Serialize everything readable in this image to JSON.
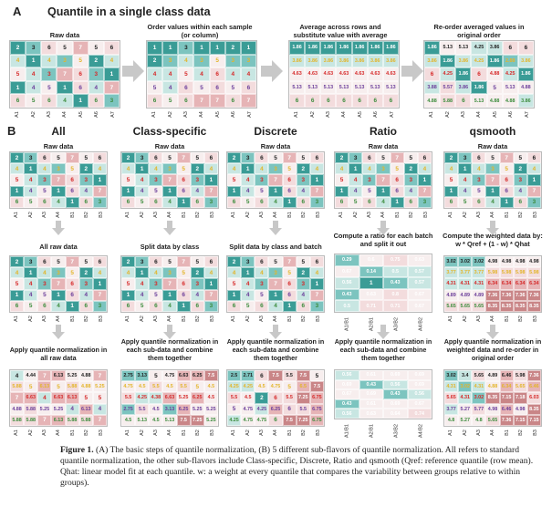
{
  "panel_a": {
    "letter": "A",
    "title": "Quantile in a single class data",
    "steps": [
      {
        "label": "Raw data"
      },
      {
        "label": "Order values within each sample (or column)"
      },
      {
        "label": "Average across rows and substitute value with average"
      },
      {
        "label": "Re-order averaged values in original order"
      }
    ],
    "col_labels": [
      "A1",
      "A2",
      "A3",
      "A4",
      "A5",
      "A6",
      "A7"
    ],
    "grids": [
      {
        "values": [
          [
            "2",
            "3",
            "6",
            "5",
            "7",
            "5",
            "6"
          ],
          [
            "4",
            "1",
            "4",
            "3",
            "5",
            "2",
            "4"
          ],
          [
            "5",
            "4",
            "3",
            "7",
            "6",
            "3",
            "1"
          ],
          [
            "1",
            "4",
            "5",
            "1",
            "6",
            "4",
            "7"
          ],
          [
            "6",
            "5",
            "6",
            "4",
            "1",
            "6",
            "3"
          ]
        ]
      },
      {
        "values": [
          [
            "1",
            "1",
            "3",
            "1",
            "1",
            "2",
            "1"
          ],
          [
            "2",
            "3",
            "4",
            "3",
            "5",
            "3",
            "3"
          ],
          [
            "4",
            "4",
            "5",
            "4",
            "6",
            "4",
            "4"
          ],
          [
            "5",
            "4",
            "6",
            "5",
            "6",
            "5",
            "6"
          ],
          [
            "6",
            "5",
            "6",
            "7",
            "7",
            "6",
            "7"
          ]
        ]
      },
      {
        "values": [
          [
            "1.86",
            "1.86",
            "1.86",
            "1.86",
            "1.86",
            "1.86",
            "1.86"
          ],
          [
            "3.86",
            "3.86",
            "3.86",
            "3.86",
            "3.86",
            "3.86",
            "3.86"
          ],
          [
            "4.63",
            "4.63",
            "4.63",
            "4.63",
            "4.63",
            "4.63",
            "4.63"
          ],
          [
            "5.13",
            "5.13",
            "5.13",
            "5.13",
            "5.13",
            "5.13",
            "5.13"
          ],
          [
            "6",
            "6",
            "6",
            "6",
            "6",
            "6",
            "6"
          ]
        ]
      },
      {
        "values": [
          [
            "1.86",
            "5.13",
            "5.13",
            "4.25",
            "3.86",
            "6",
            "6"
          ],
          [
            "3.86",
            "1.86",
            "3.86",
            "4.25",
            "1.86",
            "2.88",
            "3.86"
          ],
          [
            "6",
            "4.25",
            "1.86",
            "6",
            "4.88",
            "4.25",
            "1.86"
          ],
          [
            "3.88",
            "5.57",
            "3.86",
            "1.86",
            "5",
            "5.13",
            "4.88"
          ],
          [
            "4.88",
            "5.88",
            "6",
            "5.13",
            "4.88",
            "4.88",
            "3.86"
          ]
        ]
      }
    ]
  },
  "panel_b": {
    "letter": "B",
    "col_labels": [
      "A1",
      "A2",
      "A3",
      "A4",
      "B1",
      "B2",
      "B3"
    ],
    "flavors": [
      {
        "name": "All",
        "row1_label": "Raw data",
        "row2_label": "All raw data",
        "row3_label": "Apply quantile normalization in all raw data",
        "g1": [
          [
            "2",
            "3",
            "6",
            "5",
            "7",
            "5",
            "6"
          ],
          [
            "4",
            "1",
            "4",
            "3",
            "5",
            "2",
            "4"
          ],
          [
            "5",
            "4",
            "3",
            "7",
            "6",
            "3",
            "1"
          ],
          [
            "1",
            "4",
            "5",
            "1",
            "6",
            "4",
            "7"
          ],
          [
            "6",
            "5",
            "6",
            "4",
            "1",
            "6",
            "3"
          ]
        ],
        "g2": [
          [
            "2",
            "3",
            "6",
            "5",
            "7",
            "5",
            "6"
          ],
          [
            "4",
            "1",
            "4",
            "3",
            "5",
            "2",
            "4"
          ],
          [
            "5",
            "4",
            "3",
            "7",
            "6",
            "3",
            "1"
          ],
          [
            "1",
            "4",
            "5",
            "1",
            "6",
            "4",
            "7"
          ],
          [
            "6",
            "5",
            "6",
            "4",
            "1",
            "6",
            "3"
          ]
        ],
        "g3": [
          [
            "4",
            "4.44",
            "7",
            "6.13",
            "5.25",
            "4.88",
            "7"
          ],
          [
            "5.88",
            "5",
            "6.13",
            "5",
            "5.88",
            "4.88",
            "5.25"
          ],
          [
            "7",
            "6.63",
            "4",
            "6.63",
            "6.13",
            "5",
            "5"
          ],
          [
            "4.88",
            "5.88",
            "5.25",
            "5.25",
            "4",
            "6.13",
            "4"
          ],
          [
            "5.88",
            "5.88",
            "7",
            "6.13",
            "5.88",
            "5.88",
            "7"
          ]
        ]
      },
      {
        "name": "Class-specific",
        "row1_label": "Raw data",
        "row2_label": "Split data by class",
        "row3_label": "Apply quantile normalization in each sub-data and combine them together",
        "g1": [
          [
            "2",
            "3",
            "6",
            "5",
            "7",
            "5",
            "6"
          ],
          [
            "4",
            "1",
            "4",
            "3",
            "5",
            "2",
            "4"
          ],
          [
            "5",
            "4",
            "3",
            "7",
            "6",
            "3",
            "1"
          ],
          [
            "1",
            "4",
            "5",
            "1",
            "6",
            "4",
            "7"
          ],
          [
            "6",
            "5",
            "6",
            "4",
            "1",
            "6",
            "3"
          ]
        ],
        "g2": [
          [
            "2",
            "3",
            "6",
            "5",
            "7",
            "5",
            "6"
          ],
          [
            "4",
            "1",
            "4",
            "3",
            "5",
            "2",
            "4"
          ],
          [
            "5",
            "4",
            "3",
            "7",
            "6",
            "3",
            "1"
          ],
          [
            "1",
            "4",
            "5",
            "1",
            "6",
            "4",
            "7"
          ],
          [
            "6",
            "5",
            "6",
            "4",
            "1",
            "6",
            "3"
          ]
        ],
        "g3": [
          [
            "2.75",
            "3.13",
            "5",
            "4.75",
            "6.63",
            "6.25",
            "7.5"
          ],
          [
            "4.75",
            "4.5",
            "5.5",
            "4.5",
            "5.5",
            "5",
            "4.5"
          ],
          [
            "5.5",
            "4.25",
            "4.38",
            "6.63",
            "5.25",
            "6.25",
            "4.5"
          ],
          [
            "2.75",
            "5.5",
            "4.5",
            "3.13",
            "6.25",
            "5.25",
            "5.25"
          ],
          [
            "4.5",
            "5.13",
            "4.5",
            "5.13",
            "7.5",
            "7.25",
            "5.25"
          ]
        ]
      },
      {
        "name": "Discrete",
        "row1_label": "Raw data",
        "row2_label": "Split data by class and batch",
        "row3_label": "Apply quantile normalization in each sub-data and combine them together",
        "g1": [
          [
            "2",
            "3",
            "6",
            "5",
            "7",
            "5",
            "6"
          ],
          [
            "4",
            "1",
            "4",
            "3",
            "5",
            "2",
            "4"
          ],
          [
            "5",
            "4",
            "3",
            "7",
            "6",
            "3",
            "1"
          ],
          [
            "1",
            "4",
            "5",
            "1",
            "6",
            "4",
            "7"
          ],
          [
            "6",
            "5",
            "6",
            "4",
            "1",
            "6",
            "3"
          ]
        ],
        "g2": [
          [
            "2",
            "3",
            "6",
            "5",
            "7",
            "5",
            "6"
          ],
          [
            "4",
            "1",
            "4",
            "3",
            "5",
            "2",
            "4"
          ],
          [
            "5",
            "4",
            "3",
            "7",
            "6",
            "3",
            "1"
          ],
          [
            "1",
            "4",
            "5",
            "1",
            "6",
            "4",
            "7"
          ],
          [
            "6",
            "5",
            "6",
            "4",
            "1",
            "6",
            "3"
          ]
        ],
        "g3": [
          [
            "2.5",
            "2.71",
            "6",
            "7.5",
            "5.5",
            "7.5",
            "5"
          ],
          [
            "4.25",
            "4.25",
            "4.5",
            "4.75",
            "5",
            "6.5",
            "7.5"
          ],
          [
            "5.5",
            "4.5",
            "2",
            "6",
            "5.5",
            "7.25",
            "6.75"
          ],
          [
            "5",
            "4.75",
            "4.25",
            "6.25",
            "6",
            "5.5",
            "6.75"
          ],
          [
            "4.25",
            "4.75",
            "4.75",
            "6",
            "7.5",
            "7.25",
            "6.75"
          ]
        ]
      },
      {
        "name": "Ratio",
        "row1_label": "Raw data",
        "row2_label": "Compute a ratio for each batch and split it out",
        "row3_label": "Apply quantile normalization in each sub-data and combine them together",
        "g1": [
          [
            "2",
            "3",
            "6",
            "5",
            "7",
            "5",
            "6"
          ],
          [
            "4",
            "1",
            "4",
            "3",
            "5",
            "2",
            "4"
          ],
          [
            "5",
            "4",
            "3",
            "7",
            "6",
            "3",
            "1"
          ],
          [
            "1",
            "4",
            "5",
            "1",
            "6",
            "4",
            "7"
          ],
          [
            "6",
            "5",
            "6",
            "4",
            "1",
            "6",
            "3"
          ]
        ],
        "g2": [
          [
            "0.29",
            "0.6",
            "0.75",
            "0.63"
          ],
          [
            "0.67",
            "0.14",
            "0.5",
            "0.57"
          ],
          [
            "0.56",
            "1",
            "0.43",
            "0.57"
          ],
          [
            "0.43",
            "0.63",
            "0.8",
            "0.67"
          ],
          [
            "0.5",
            "0.71",
            "0.71",
            "0.67"
          ]
        ],
        "g2_cols": [
          "A1/B1",
          "A2/B1",
          "A3/B2",
          "A4/B2"
        ],
        "g3": [
          [
            "0.56",
            "0.61",
            "0.69",
            "0.69"
          ],
          [
            "0.69",
            "0.43",
            "0.56",
            "0.69"
          ],
          [
            "0.67",
            "0.69",
            "0.43",
            "0.56"
          ],
          [
            "0.43",
            "0.61",
            "0.69",
            "0.67"
          ],
          [
            "0.56",
            "0.63",
            "0.64",
            "0.74"
          ]
        ],
        "g3_cols": [
          "A1/B1",
          "A2/B1",
          "A3/B2",
          "A4/B2"
        ]
      },
      {
        "name": "qsmooth",
        "row1_label": "Raw data",
        "row2_label": "Compute the weighted data by: w * Qref + (1 - w) * Qhat",
        "row3_label": "Apply quantile normalization in weighted data and re-order in original order",
        "g1": [
          [
            "2",
            "3",
            "6",
            "5",
            "7",
            "5",
            "6"
          ],
          [
            "4",
            "1",
            "4",
            "3",
            "5",
            "2",
            "4"
          ],
          [
            "5",
            "4",
            "3",
            "7",
            "6",
            "3",
            "1"
          ],
          [
            "1",
            "4",
            "5",
            "1",
            "6",
            "4",
            "7"
          ],
          [
            "6",
            "5",
            "6",
            "4",
            "1",
            "6",
            "3"
          ]
        ],
        "g2": [
          [
            "3.02",
            "3.02",
            "3.02",
            "4.98",
            "4.98",
            "4.98",
            "4.98"
          ],
          [
            "3.77",
            "3.77",
            "3.77",
            "5.98",
            "5.98",
            "5.98",
            "5.98"
          ],
          [
            "4.31",
            "4.31",
            "4.31",
            "6.34",
            "6.34",
            "6.34",
            "6.34"
          ],
          [
            "4.89",
            "4.89",
            "4.89",
            "7.36",
            "7.36",
            "7.36",
            "7.36"
          ],
          [
            "5.65",
            "5.65",
            "5.65",
            "8.35",
            "8.35",
            "8.35",
            "8.35"
          ]
        ],
        "g3": [
          [
            "3.02",
            "3.4",
            "5.65",
            "4.89",
            "6.46",
            "5.98",
            "7.36"
          ],
          [
            "4.31",
            "3.02",
            "4.31",
            "4.88",
            "6.34",
            "5.65",
            "6.46"
          ],
          [
            "5.65",
            "4.31",
            "3.02",
            "8.35",
            "7.15",
            "7.18",
            "6.03"
          ],
          [
            "3.77",
            "5.27",
            "5.77",
            "4.98",
            "6.46",
            "4.98",
            "8.35"
          ],
          [
            "4.8",
            "5.27",
            "4.8",
            "5.65",
            "7.36",
            "7.15",
            "7.15"
          ]
        ]
      }
    ]
  },
  "caption": {
    "prefix": "Figure 1.",
    "text": " (A) The basic steps of quantile normalization, (B) 5 different sub-flavors of quantile normalization. All refers to standard quantile normalization, the other sub-flavors include Class-specific, Discrete, Ratio and qsmooth (Qref: reference quantile (row mean). Qhat: linear model fit at each quantile. w: a weight at every quantile that compares the variability between groups relative to within groups)."
  },
  "colors": {
    "arrow": "#c8c8c8",
    "teal_dark": "#3a9c96",
    "teal_mid": "#7cc4bf",
    "teal_light": "#c8e6e2",
    "pink_light": "#f3dcdd",
    "pink_mid": "#e6b4b6",
    "pink_dark": "#c98587",
    "red_text": "#d62828",
    "yellow_text": "#e3b52a",
    "purple_text": "#6a3d9a",
    "green_text": "#3c8c3c",
    "dark_text": "#222222"
  }
}
